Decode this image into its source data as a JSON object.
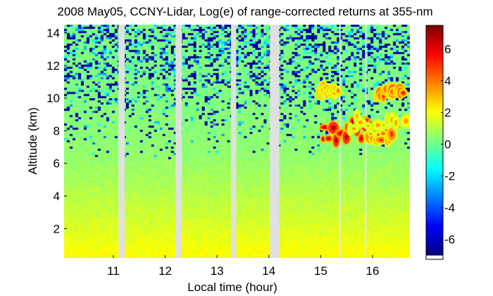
{
  "chart_data": {
    "type": "heatmap",
    "title": "2008 May05, CCNY-Lidar, Log(e) of range-corrected returns at 355-nm",
    "xlabel": "Local time (hour)",
    "ylabel": "Altitude (km)",
    "xlim": [
      10.05,
      16.72
    ],
    "ylim": [
      0.2,
      14.5
    ],
    "x_ticks": [
      11,
      12,
      13,
      14,
      15,
      16
    ],
    "x_tick_labels": [
      "11",
      "12",
      "13",
      "14",
      "15",
      "16"
    ],
    "y_ticks": [
      2,
      4,
      6,
      8,
      10,
      12,
      14
    ],
    "y_tick_labels": [
      "2",
      "4",
      "6",
      "8",
      "10",
      "12",
      "14"
    ],
    "colorbar": {
      "colormap": "jet",
      "range": [
        -7,
        7.5
      ],
      "ticks": [
        -6,
        -4,
        -2,
        0,
        2,
        4,
        6
      ],
      "tick_labels": [
        "-6",
        "-4",
        "-2",
        "0",
        "2",
        "4",
        "6"
      ]
    },
    "data_gaps_hours": [
      [
        11.1,
        11.22
      ],
      [
        12.2,
        12.32
      ],
      [
        13.27,
        13.37
      ],
      [
        14.02,
        14.2
      ]
    ],
    "thin_gaps_hours": [
      15.37,
      15.87
    ],
    "profile_by_altitude": [
      {
        "altitude_km": 0.5,
        "value": 2.0
      },
      {
        "altitude_km": 1.5,
        "value": 1.7
      },
      {
        "altitude_km": 3.0,
        "value": 1.3
      },
      {
        "altitude_km": 5.0,
        "value": 0.8
      },
      {
        "altitude_km": 6.5,
        "value": 0.5
      },
      {
        "altitude_km": 8.0,
        "value": 0.4
      },
      {
        "altitude_km": 10.0,
        "value": 0.3
      },
      {
        "altitude_km": 12.0,
        "value": 0.2
      },
      {
        "altitude_km": 14.0,
        "value": 0.2
      }
    ],
    "noise_onset_altitude_km": 6.0,
    "cloud_features": [
      {
        "t_start": 15.0,
        "t_end": 15.35,
        "alt_low": 10.3,
        "alt_high": 10.8,
        "value": 3.0
      },
      {
        "t_start": 15.0,
        "t_end": 16.0,
        "alt_low": 7.3,
        "alt_high": 8.8,
        "value": 5.0
      },
      {
        "t_start": 15.9,
        "t_end": 16.4,
        "alt_low": 7.4,
        "alt_high": 8.3,
        "value": 3.5
      },
      {
        "t_start": 16.1,
        "t_end": 16.6,
        "alt_low": 10.1,
        "alt_high": 10.6,
        "value": 4.0
      },
      {
        "t_start": 15.5,
        "t_end": 16.7,
        "alt_low": 8.0,
        "alt_high": 9.0,
        "value": 2.0
      }
    ]
  }
}
